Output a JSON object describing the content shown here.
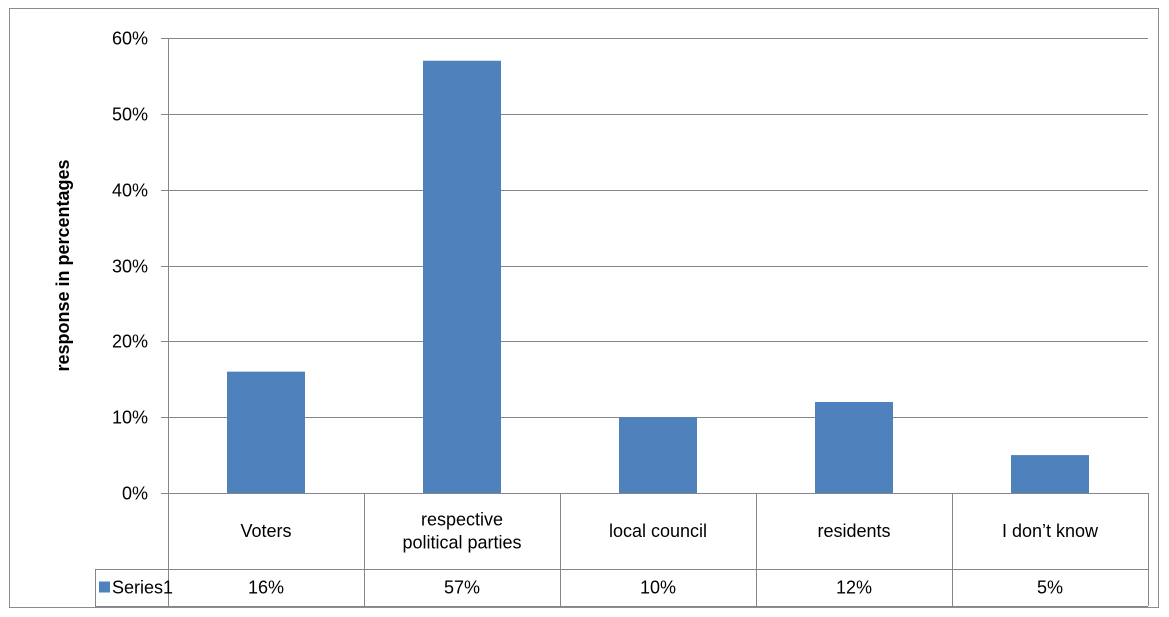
{
  "chart_data": {
    "type": "bar",
    "categories": [
      "Voters",
      "respective political parties",
      "local council",
      "residents",
      "I don’t know"
    ],
    "category_lines": [
      [
        "Voters"
      ],
      [
        "respective",
        "political parties"
      ],
      [
        "local council"
      ],
      [
        "residents"
      ],
      [
        "I don’t know"
      ]
    ],
    "series": [
      {
        "name": "Series1",
        "values": [
          16,
          57,
          10,
          12,
          5
        ],
        "value_labels": [
          "16%",
          "57%",
          "10%",
          "12%",
          "5%"
        ],
        "color": "#4f81bd"
      }
    ],
    "ylabel": "response in percentages",
    "yticks": [
      "0%",
      "10%",
      "20%",
      "30%",
      "40%",
      "50%",
      "60%"
    ],
    "ylim": [
      0,
      60
    ],
    "grid": true,
    "legend": "data-table"
  }
}
